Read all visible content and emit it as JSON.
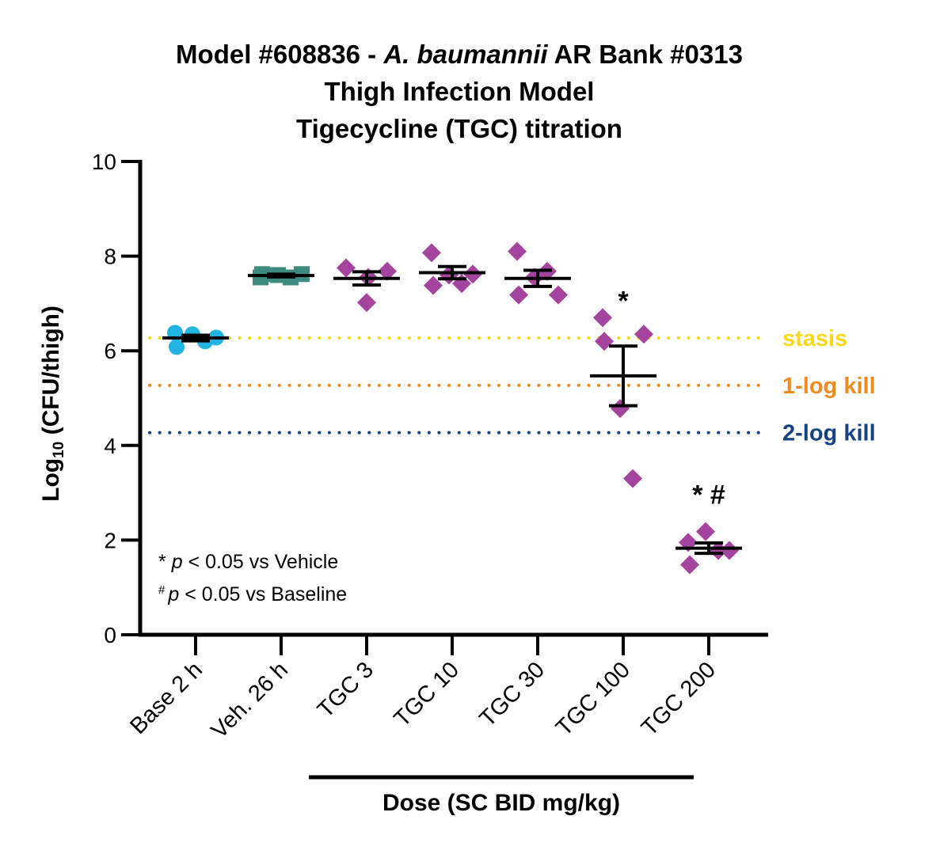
{
  "chart_data": {
    "type": "scatter",
    "title": {
      "line1_prefix": "Model #608836 - ",
      "line1_italic": "A. baumannii",
      "line1_suffix": " AR Bank #0313",
      "line2": "Thigh Infection Model",
      "line3": "Tigecycline (TGC) titration"
    },
    "ylabel": {
      "prefix": "Log",
      "sub": "10",
      "suffix": " (CFU/thigh)"
    },
    "xlabel": "Dose (SC BID mg/kg)",
    "ylim": [
      0,
      10
    ],
    "yticks": [
      0,
      2,
      4,
      6,
      8,
      10
    ],
    "categories": [
      "Base 2 h",
      "Veh. 26 h",
      "TGC 3",
      "TGC 10",
      "TGC 30",
      "TGC 100",
      "TGC 200"
    ],
    "groups": [
      {
        "category": "Base 2 h",
        "marker": "circle",
        "color": "#22b5e3",
        "points": [
          6.38,
          6.08,
          6.35,
          6.2,
          6.28
        ],
        "mean": 6.27,
        "sem": 0.06
      },
      {
        "category": "Veh. 26 h",
        "marker": "square",
        "color": "#3d8a80",
        "points": [
          7.55,
          7.62,
          7.6,
          7.55,
          7.62
        ],
        "mean": 7.59,
        "sem": 0.03
      },
      {
        "category": "TGC 3",
        "marker": "diamond",
        "color": "#a5449e",
        "points": [
          7.75,
          7.02,
          7.55,
          7.68
        ],
        "mean": 7.53,
        "sem": 0.14
      },
      {
        "category": "TGC 10",
        "marker": "diamond",
        "color": "#a5449e",
        "points": [
          8.07,
          7.38,
          7.6,
          7.42,
          7.62
        ],
        "mean": 7.65,
        "sem": 0.13
      },
      {
        "category": "TGC 30",
        "marker": "diamond",
        "color": "#a5449e",
        "points": [
          8.1,
          7.18,
          7.55,
          7.68,
          7.18
        ],
        "mean": 7.53,
        "sem": 0.17
      },
      {
        "category": "TGC 100",
        "marker": "diamond",
        "color": "#a5449e",
        "points": [
          6.7,
          6.2,
          4.78,
          3.3,
          6.35
        ],
        "mean": 5.47,
        "sem": 0.63
      },
      {
        "category": "TGC 200",
        "marker": "diamond",
        "color": "#a5449e",
        "points": [
          1.95,
          1.48,
          2.18,
          1.78,
          1.78
        ],
        "mean": 1.83,
        "sem": 0.11
      }
    ],
    "reference_lines": [
      {
        "label": "stasis",
        "y": 6.27,
        "color": "#f7d916"
      },
      {
        "label": "1-log kill",
        "y": 5.27,
        "color": "#ef8a1f"
      },
      {
        "label": "2-log kill",
        "y": 4.27,
        "color": "#164282"
      }
    ],
    "significance": [
      {
        "category": "TGC 100",
        "text": "*",
        "y": 7.3
      },
      {
        "category": "TGC 200",
        "text": "* #",
        "y": 3.2
      }
    ],
    "notes": [
      {
        "symbol": "*",
        "p": "p",
        "text": " < 0.05 vs Vehicle"
      },
      {
        "symbol": "#",
        "p": "p",
        "text": " < 0.05 vs Baseline"
      }
    ]
  }
}
